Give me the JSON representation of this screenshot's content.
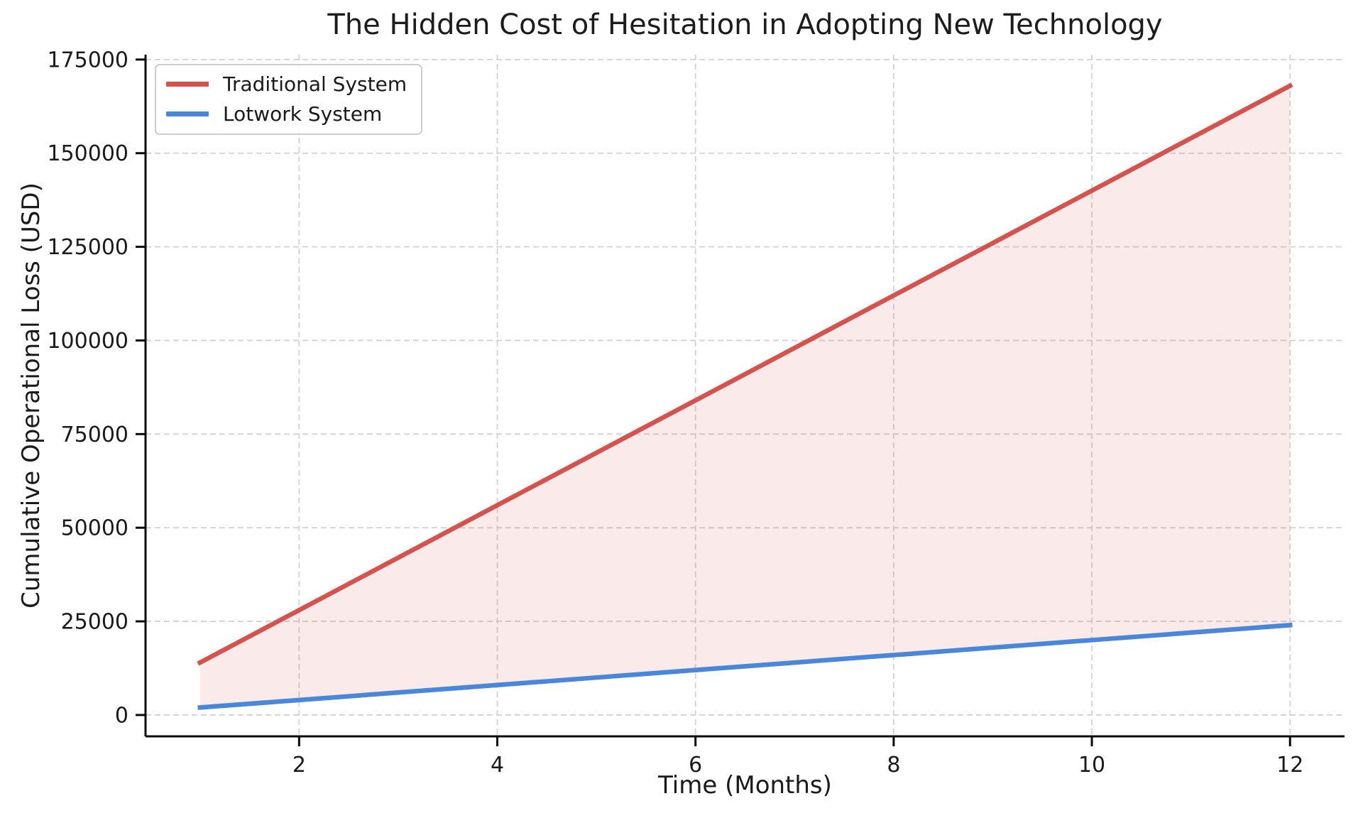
{
  "chart_data": {
    "type": "line",
    "title": "The Hidden Cost of Hesitation in Adopting New Technology",
    "xlabel": "Time (Months)",
    "ylabel": "Cumulative Operational Loss (USD)",
    "x": [
      1,
      2,
      3,
      4,
      5,
      6,
      7,
      8,
      9,
      10,
      11,
      12
    ],
    "series": [
      {
        "name": "Traditional System",
        "color": "#d5534f",
        "values": [
          14000,
          28000,
          42000,
          56000,
          70000,
          84000,
          98000,
          112000,
          126000,
          140000,
          154000,
          168000
        ]
      },
      {
        "name": "Lotwork System",
        "color": "#4a87d9",
        "values": [
          2000,
          4000,
          6000,
          8000,
          10000,
          12000,
          14000,
          16000,
          18000,
          20000,
          22000,
          24000
        ]
      }
    ],
    "fill_between": {
      "between": [
        "Traditional System",
        "Lotwork System"
      ],
      "color": "rgba(213, 83, 79, 0.12)"
    },
    "xticks": [
      2,
      4,
      6,
      8,
      10,
      12
    ],
    "yticks": [
      0,
      25000,
      50000,
      75000,
      100000,
      125000,
      150000,
      175000
    ],
    "xlim": [
      0.45,
      12.55
    ],
    "ylim": [
      -5700,
      176300
    ],
    "grid": true,
    "grid_style": "dashed",
    "legend_position": "upper left",
    "colors": {
      "text": "#1a1a1a",
      "spine": "#0a0a0a",
      "grid": "#d2d2d2",
      "background": "#ffffff"
    }
  }
}
